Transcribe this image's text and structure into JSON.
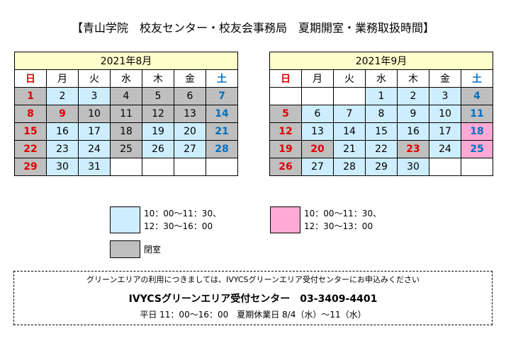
{
  "title": "【青山学院　校友センター・校友会事務局　夏期開室・業務取扱時間】",
  "calendars": [
    {
      "title": "2021年8月",
      "weekdays": [
        {
          "label": "日",
          "color": "#e00000"
        },
        {
          "label": "月",
          "color": "#000000"
        },
        {
          "label": "火",
          "color": "#000000"
        },
        {
          "label": "水",
          "color": "#000000"
        },
        {
          "label": "木",
          "color": "#000000"
        },
        {
          "label": "金",
          "color": "#000000"
        },
        {
          "label": "土",
          "color": "#0070c0"
        }
      ],
      "weeks": [
        [
          {
            "d": "1",
            "bg": "#bfbfbf",
            "fg": "#e00000"
          },
          {
            "d": "2",
            "bg": "#cdeefe",
            "fg": "#000000"
          },
          {
            "d": "3",
            "bg": "#cdeefe",
            "fg": "#000000"
          },
          {
            "d": "4",
            "bg": "#bfbfbf",
            "fg": "#000000"
          },
          {
            "d": "5",
            "bg": "#bfbfbf",
            "fg": "#000000"
          },
          {
            "d": "6",
            "bg": "#bfbfbf",
            "fg": "#000000"
          },
          {
            "d": "7",
            "bg": "#bfbfbf",
            "fg": "#0070c0"
          }
        ],
        [
          {
            "d": "8",
            "bg": "#bfbfbf",
            "fg": "#e00000"
          },
          {
            "d": "9",
            "bg": "#bfbfbf",
            "fg": "#e00000"
          },
          {
            "d": "10",
            "bg": "#bfbfbf",
            "fg": "#000000"
          },
          {
            "d": "11",
            "bg": "#bfbfbf",
            "fg": "#000000"
          },
          {
            "d": "12",
            "bg": "#bfbfbf",
            "fg": "#000000"
          },
          {
            "d": "13",
            "bg": "#bfbfbf",
            "fg": "#000000"
          },
          {
            "d": "14",
            "bg": "#bfbfbf",
            "fg": "#0070c0"
          }
        ],
        [
          {
            "d": "15",
            "bg": "#bfbfbf",
            "fg": "#e00000"
          },
          {
            "d": "16",
            "bg": "#cdeefe",
            "fg": "#000000"
          },
          {
            "d": "17",
            "bg": "#cdeefe",
            "fg": "#000000"
          },
          {
            "d": "18",
            "bg": "#bfbfbf",
            "fg": "#000000"
          },
          {
            "d": "19",
            "bg": "#cdeefe",
            "fg": "#000000"
          },
          {
            "d": "20",
            "bg": "#cdeefe",
            "fg": "#000000"
          },
          {
            "d": "21",
            "bg": "#bfbfbf",
            "fg": "#0070c0"
          }
        ],
        [
          {
            "d": "22",
            "bg": "#bfbfbf",
            "fg": "#e00000"
          },
          {
            "d": "23",
            "bg": "#cdeefe",
            "fg": "#000000"
          },
          {
            "d": "24",
            "bg": "#cdeefe",
            "fg": "#000000"
          },
          {
            "d": "25",
            "bg": "#bfbfbf",
            "fg": "#000000"
          },
          {
            "d": "26",
            "bg": "#cdeefe",
            "fg": "#000000"
          },
          {
            "d": "27",
            "bg": "#cdeefe",
            "fg": "#000000"
          },
          {
            "d": "28",
            "bg": "#bfbfbf",
            "fg": "#0070c0"
          }
        ],
        [
          {
            "d": "29",
            "bg": "#bfbfbf",
            "fg": "#e00000"
          },
          {
            "d": "30",
            "bg": "#cdeefe",
            "fg": "#000000"
          },
          {
            "d": "31",
            "bg": "#cdeefe",
            "fg": "#000000"
          },
          null,
          null,
          null,
          null
        ]
      ]
    },
    {
      "title": "2021年9月",
      "weekdays": [
        {
          "label": "日",
          "color": "#e00000"
        },
        {
          "label": "月",
          "color": "#000000"
        },
        {
          "label": "火",
          "color": "#000000"
        },
        {
          "label": "水",
          "color": "#000000"
        },
        {
          "label": "木",
          "color": "#000000"
        },
        {
          "label": "金",
          "color": "#000000"
        },
        {
          "label": "土",
          "color": "#0070c0"
        }
      ],
      "weeks": [
        [
          null,
          null,
          null,
          {
            "d": "1",
            "bg": "#cdeefe",
            "fg": "#000000"
          },
          {
            "d": "2",
            "bg": "#cdeefe",
            "fg": "#000000"
          },
          {
            "d": "3",
            "bg": "#cdeefe",
            "fg": "#000000"
          },
          {
            "d": "4",
            "bg": "#bfbfbf",
            "fg": "#0070c0"
          }
        ],
        [
          {
            "d": "5",
            "bg": "#bfbfbf",
            "fg": "#e00000"
          },
          {
            "d": "6",
            "bg": "#cdeefe",
            "fg": "#000000"
          },
          {
            "d": "7",
            "bg": "#cdeefe",
            "fg": "#000000"
          },
          {
            "d": "8",
            "bg": "#cdeefe",
            "fg": "#000000"
          },
          {
            "d": "9",
            "bg": "#cdeefe",
            "fg": "#000000"
          },
          {
            "d": "10",
            "bg": "#cdeefe",
            "fg": "#000000"
          },
          {
            "d": "11",
            "bg": "#bfbfbf",
            "fg": "#0070c0"
          }
        ],
        [
          {
            "d": "12",
            "bg": "#bfbfbf",
            "fg": "#e00000"
          },
          {
            "d": "13",
            "bg": "#cdeefe",
            "fg": "#000000"
          },
          {
            "d": "14",
            "bg": "#cdeefe",
            "fg": "#000000"
          },
          {
            "d": "15",
            "bg": "#cdeefe",
            "fg": "#000000"
          },
          {
            "d": "16",
            "bg": "#cdeefe",
            "fg": "#000000"
          },
          {
            "d": "17",
            "bg": "#cdeefe",
            "fg": "#000000"
          },
          {
            "d": "18",
            "bg": "#ffaad5",
            "fg": "#0070c0"
          }
        ],
        [
          {
            "d": "19",
            "bg": "#bfbfbf",
            "fg": "#e00000"
          },
          {
            "d": "20",
            "bg": "#bfbfbf",
            "fg": "#e00000"
          },
          {
            "d": "21",
            "bg": "#cdeefe",
            "fg": "#000000"
          },
          {
            "d": "22",
            "bg": "#cdeefe",
            "fg": "#000000"
          },
          {
            "d": "23",
            "bg": "#bfbfbf",
            "fg": "#e00000"
          },
          {
            "d": "24",
            "bg": "#cdeefe",
            "fg": "#000000"
          },
          {
            "d": "25",
            "bg": "#ffaad5",
            "fg": "#0070c0"
          }
        ],
        [
          {
            "d": "26",
            "bg": "#bfbfbf",
            "fg": "#e00000"
          },
          {
            "d": "27",
            "bg": "#cdeefe",
            "fg": "#000000"
          },
          {
            "d": "28",
            "bg": "#cdeefe",
            "fg": "#000000"
          },
          {
            "d": "29",
            "bg": "#cdeefe",
            "fg": "#000000"
          },
          {
            "d": "30",
            "bg": "#cdeefe",
            "fg": "#000000"
          },
          null,
          null
        ]
      ]
    }
  ],
  "legend": [
    {
      "color": "#cdeefe",
      "lines": [
        "10：00～11：30、",
        "12：30～16：00"
      ]
    },
    {
      "color": "#ffaad5",
      "lines": [
        "10：00～11：30、",
        "12：30～13：00"
      ]
    },
    {
      "color": "#bfbfbf",
      "lines": [
        "閉室"
      ]
    }
  ],
  "footer": {
    "note": "グリーンエリアの利用につきましては、IVYCSグリーンエリア受付センターにお申込みください",
    "contact": "IVYCSグリーンエリア受付センター　03-3409-4401",
    "hours": "平日 11：00～16：00　夏期休業日 8/4（水）～11（水）"
  }
}
